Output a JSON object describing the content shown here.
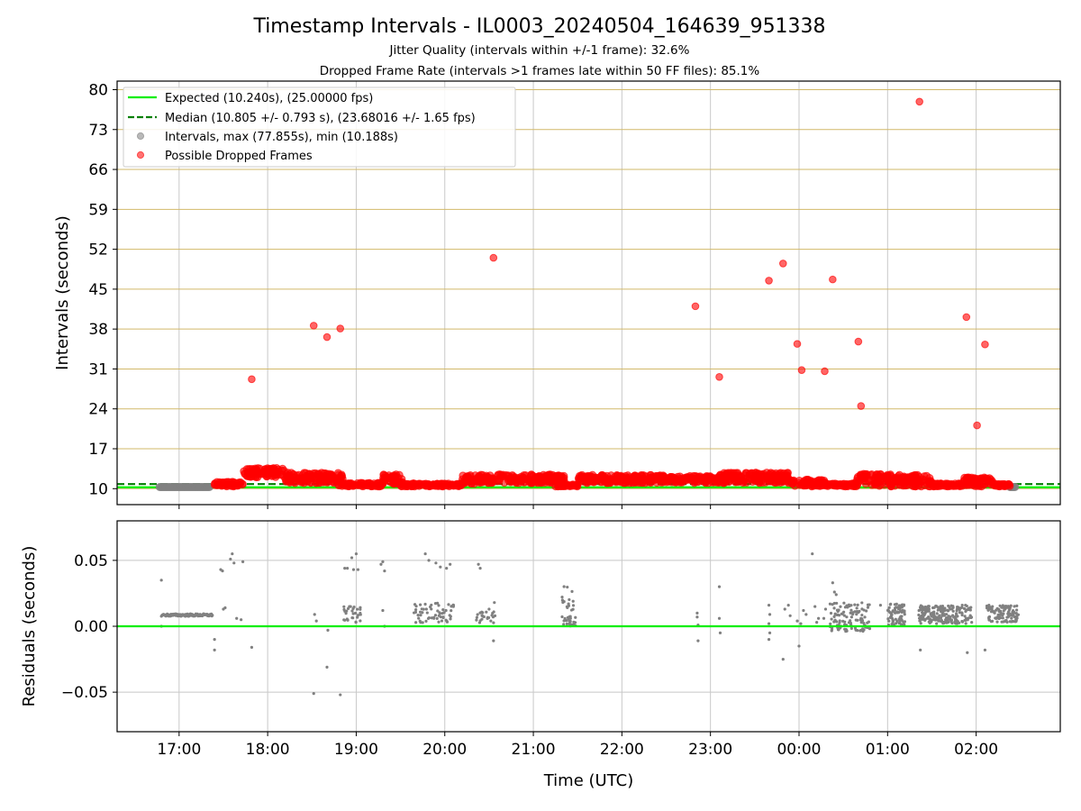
{
  "header": {
    "title": "Timestamp Intervals - IL0003_20240504_164639_951338",
    "subtitle1": "Jitter Quality (intervals within +/-1 frame): 32.6%",
    "subtitle2": "Dropped Frame Rate (intervals >1 frames late within 50 FF files): 85.1%"
  },
  "colors": {
    "expected": "#00ee00",
    "median": "#007f00",
    "interval": "#808080",
    "dropped": "#ff0000",
    "hgrid": "#d2b96a",
    "vgrid": "#c8c8c8"
  },
  "chart_data": [
    {
      "type": "scatter",
      "name": "intervals",
      "ylabel": "Intervals (seconds)",
      "ylim": [
        7.2,
        81.5
      ],
      "yticks": [
        10,
        17,
        24,
        31,
        38,
        45,
        52,
        59,
        66,
        73,
        80
      ],
      "xlim_hours": [
        16.3,
        26.95
      ],
      "xticks_hours": [
        17,
        18,
        19,
        20,
        21,
        22,
        23,
        24,
        25,
        26
      ],
      "grid": true,
      "legend_position": "top-left",
      "legend": {
        "expected": "Expected (10.240s), (25.00000 fps)",
        "median": "Median (10.805 +/- 0.793 s), (23.68016 +/- 1.65 fps)",
        "intervals": "Intervals, max (77.855s), min (10.188s)",
        "dropped": "Possible Dropped Frames"
      },
      "expected_value": 10.24,
      "median_value": 10.805,
      "baseline_span_hours": [
        16.78,
        17.35
      ],
      "dropped_outliers": [
        {
          "t": 17.82,
          "y": 29.2
        },
        {
          "t": 18.52,
          "y": 38.6
        },
        {
          "t": 18.67,
          "y": 36.6
        },
        {
          "t": 18.82,
          "y": 38.1
        },
        {
          "t": 20.55,
          "y": 50.5
        },
        {
          "t": 22.83,
          "y": 42.0
        },
        {
          "t": 23.1,
          "y": 29.6
        },
        {
          "t": 23.66,
          "y": 46.5
        },
        {
          "t": 23.82,
          "y": 49.5
        },
        {
          "t": 23.98,
          "y": 35.4
        },
        {
          "t": 24.03,
          "y": 30.8
        },
        {
          "t": 24.29,
          "y": 30.6
        },
        {
          "t": 24.38,
          "y": 46.7
        },
        {
          "t": 24.67,
          "y": 35.8
        },
        {
          "t": 24.7,
          "y": 24.5
        },
        {
          "t": 25.36,
          "y": 77.9
        },
        {
          "t": 25.89,
          "y": 40.1
        },
        {
          "t": 26.01,
          "y": 21.1
        },
        {
          "t": 26.1,
          "y": 35.3
        }
      ],
      "dropped_segments": [
        {
          "t0": 17.4,
          "t1": 17.72,
          "lo": 10.4,
          "hi": 11.2
        },
        {
          "t0": 17.72,
          "t1": 18.2,
          "lo": 12.0,
          "hi": 13.6
        },
        {
          "t0": 18.2,
          "t1": 18.85,
          "lo": 11.0,
          "hi": 12.8
        },
        {
          "t0": 18.8,
          "t1": 19.3,
          "lo": 10.4,
          "hi": 11.0
        },
        {
          "t0": 19.3,
          "t1": 19.55,
          "lo": 10.8,
          "hi": 12.6
        },
        {
          "t0": 19.5,
          "t1": 20.2,
          "lo": 10.4,
          "hi": 10.9
        },
        {
          "t0": 20.2,
          "t1": 20.35,
          "lo": 10.8,
          "hi": 12.4
        },
        {
          "t0": 20.35,
          "t1": 21.35,
          "lo": 11.0,
          "hi": 12.5
        },
        {
          "t0": 21.25,
          "t1": 21.5,
          "lo": 10.4,
          "hi": 10.8
        },
        {
          "t0": 21.5,
          "t1": 22.5,
          "lo": 11.0,
          "hi": 12.4
        },
        {
          "t0": 22.5,
          "t1": 23.1,
          "lo": 11.0,
          "hi": 12.2
        },
        {
          "t0": 23.1,
          "t1": 23.9,
          "lo": 11.0,
          "hi": 12.8
        },
        {
          "t0": 23.9,
          "t1": 24.3,
          "lo": 10.4,
          "hi": 11.6
        },
        {
          "t0": 24.3,
          "t1": 24.65,
          "lo": 10.4,
          "hi": 10.9
        },
        {
          "t0": 24.65,
          "t1": 25.05,
          "lo": 10.4,
          "hi": 12.6
        },
        {
          "t0": 25.05,
          "t1": 25.5,
          "lo": 10.4,
          "hi": 12.4
        },
        {
          "t0": 25.5,
          "t1": 25.85,
          "lo": 10.4,
          "hi": 10.9
        },
        {
          "t0": 25.85,
          "t1": 26.2,
          "lo": 10.4,
          "hi": 12.0
        },
        {
          "t0": 26.2,
          "t1": 26.38,
          "lo": 10.4,
          "hi": 10.8
        }
      ]
    },
    {
      "type": "scatter",
      "name": "residuals",
      "xlabel": "Time (UTC)",
      "ylabel": "Residuals (seconds)",
      "ylim": [
        -0.08,
        0.08
      ],
      "yticks": [
        0.05,
        0.0,
        -0.05
      ],
      "ytick_labels": [
        "0.05",
        "0.00",
        "−0.05"
      ],
      "xtick_labels": [
        "17:00",
        "18:00",
        "19:00",
        "20:00",
        "21:00",
        "22:00",
        "23:00",
        "00:00",
        "01:00",
        "02:00"
      ],
      "zero_line": 0,
      "grid": true,
      "baseline_run": {
        "t0": 16.8,
        "t1": 17.38,
        "lo": 0.0075,
        "hi": 0.0095
      },
      "isolated_points": [
        {
          "t": 16.8,
          "y": 0.035
        },
        {
          "t": 16.8,
          "y": 0.0
        },
        {
          "t": 17.4,
          "y": -0.018
        },
        {
          "t": 17.4,
          "y": -0.01
        },
        {
          "t": 17.47,
          "y": 0.043
        },
        {
          "t": 17.49,
          "y": 0.042
        },
        {
          "t": 17.5,
          "y": 0.013
        },
        {
          "t": 17.52,
          "y": 0.014
        },
        {
          "t": 17.58,
          "y": 0.051
        },
        {
          "t": 17.6,
          "y": 0.055
        },
        {
          "t": 17.62,
          "y": 0.048
        },
        {
          "t": 17.65,
          "y": 0.006
        },
        {
          "t": 17.7,
          "y": 0.005
        },
        {
          "t": 17.72,
          "y": 0.049
        },
        {
          "t": 17.82,
          "y": -0.016
        },
        {
          "t": 18.52,
          "y": -0.051
        },
        {
          "t": 18.53,
          "y": 0.009
        },
        {
          "t": 18.55,
          "y": 0.004
        },
        {
          "t": 18.67,
          "y": -0.031
        },
        {
          "t": 18.68,
          "y": -0.003
        },
        {
          "t": 18.82,
          "y": -0.052
        },
        {
          "t": 18.87,
          "y": 0.044
        },
        {
          "t": 18.9,
          "y": 0.044
        },
        {
          "t": 18.95,
          "y": 0.052
        },
        {
          "t": 18.97,
          "y": 0.043
        },
        {
          "t": 19.0,
          "y": 0.055
        },
        {
          "t": 19.02,
          "y": 0.043
        },
        {
          "t": 19.28,
          "y": 0.047
        },
        {
          "t": 19.3,
          "y": 0.049
        },
        {
          "t": 19.32,
          "y": 0.042
        },
        {
          "t": 19.3,
          "y": 0.012
        },
        {
          "t": 19.32,
          "y": 0.0
        },
        {
          "t": 19.78,
          "y": 0.055
        },
        {
          "t": 19.82,
          "y": 0.05
        },
        {
          "t": 19.9,
          "y": 0.048
        },
        {
          "t": 19.95,
          "y": 0.045
        },
        {
          "t": 20.02,
          "y": 0.044
        },
        {
          "t": 20.06,
          "y": 0.047
        },
        {
          "t": 20.38,
          "y": 0.047
        },
        {
          "t": 20.4,
          "y": 0.044
        },
        {
          "t": 20.5,
          "y": 0.013
        },
        {
          "t": 20.55,
          "y": -0.011
        },
        {
          "t": 20.52,
          "y": 0.004
        },
        {
          "t": 20.56,
          "y": 0.018
        },
        {
          "t": 22.85,
          "y": 0.01
        },
        {
          "t": 22.85,
          "y": 0.007
        },
        {
          "t": 22.86,
          "y": 0.001
        },
        {
          "t": 22.86,
          "y": -0.011
        },
        {
          "t": 23.1,
          "y": 0.03
        },
        {
          "t": 23.1,
          "y": 0.006
        },
        {
          "t": 23.11,
          "y": -0.005
        },
        {
          "t": 23.66,
          "y": 0.016
        },
        {
          "t": 23.67,
          "y": 0.009
        },
        {
          "t": 23.66,
          "y": 0.002
        },
        {
          "t": 23.67,
          "y": -0.005
        },
        {
          "t": 23.66,
          "y": -0.01
        },
        {
          "t": 23.82,
          "y": -0.025
        },
        {
          "t": 23.84,
          "y": 0.013
        },
        {
          "t": 23.88,
          "y": 0.016
        },
        {
          "t": 23.9,
          "y": 0.008
        },
        {
          "t": 23.98,
          "y": 0.004
        },
        {
          "t": 24.0,
          "y": -0.015
        },
        {
          "t": 24.02,
          "y": 0.002
        },
        {
          "t": 24.05,
          "y": 0.012
        },
        {
          "t": 24.08,
          "y": 0.009
        },
        {
          "t": 24.18,
          "y": 0.015
        },
        {
          "t": 24.2,
          "y": 0.003
        },
        {
          "t": 24.22,
          "y": 0.006
        },
        {
          "t": 24.15,
          "y": 0.055
        },
        {
          "t": 24.28,
          "y": 0.006
        },
        {
          "t": 24.3,
          "y": 0.013
        },
        {
          "t": 24.38,
          "y": 0.033
        },
        {
          "t": 24.4,
          "y": 0.026
        },
        {
          "t": 24.42,
          "y": 0.024
        },
        {
          "t": 24.7,
          "y": -0.003
        },
        {
          "t": 24.92,
          "y": 0.016
        },
        {
          "t": 25.37,
          "y": -0.018
        },
        {
          "t": 25.9,
          "y": -0.02
        },
        {
          "t": 26.1,
          "y": -0.018
        }
      ],
      "clusters": [
        {
          "t0": 18.85,
          "t1": 19.05,
          "lo": 0.003,
          "hi": 0.015,
          "n": 30
        },
        {
          "t0": 19.65,
          "t1": 20.1,
          "lo": 0.002,
          "hi": 0.018,
          "n": 60
        },
        {
          "t0": 20.35,
          "t1": 20.6,
          "lo": 0.002,
          "hi": 0.011,
          "n": 22
        },
        {
          "t0": 21.3,
          "t1": 21.48,
          "lo": 0.0,
          "hi": 0.008,
          "n": 26
        },
        {
          "t0": 21.32,
          "t1": 21.46,
          "lo": 0.012,
          "hi": 0.031,
          "n": 16
        },
        {
          "t0": 24.35,
          "t1": 24.8,
          "lo": -0.004,
          "hi": 0.018,
          "n": 110
        },
        {
          "t0": 25.0,
          "t1": 25.2,
          "lo": 0.001,
          "hi": 0.017,
          "n": 80
        },
        {
          "t0": 25.35,
          "t1": 25.95,
          "lo": 0.002,
          "hi": 0.016,
          "n": 200
        },
        {
          "t0": 26.12,
          "t1": 26.48,
          "lo": 0.003,
          "hi": 0.016,
          "n": 110
        }
      ]
    }
  ]
}
